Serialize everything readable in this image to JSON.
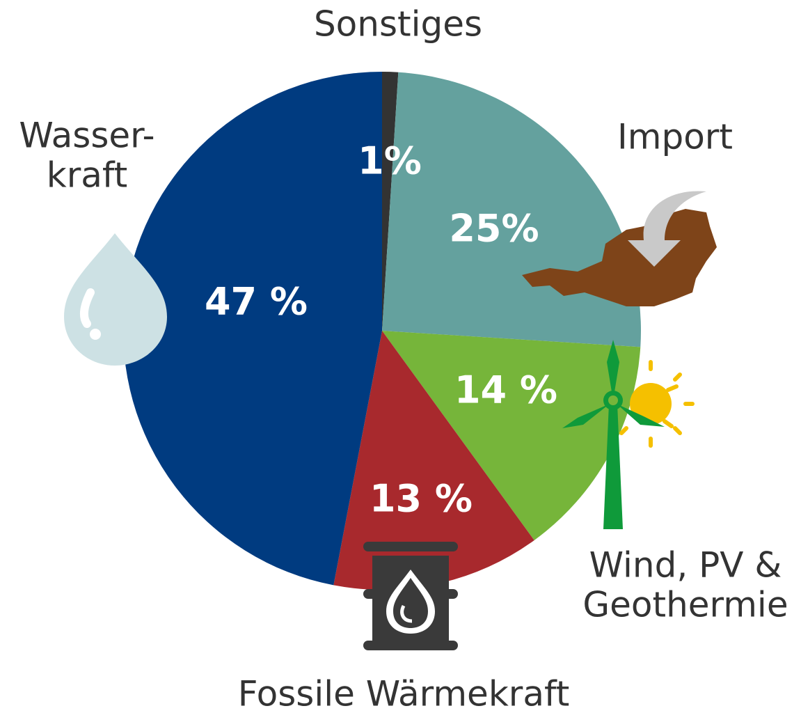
{
  "chart_data": {
    "type": "pie",
    "categories": [
      [
        "Sonstiges"
      ],
      [
        "Import"
      ],
      [
        "Wind, PV &",
        "Geothermie"
      ],
      [
        "Fossile Wärmekraft"
      ],
      [
        "Wasser-",
        "kraft"
      ]
    ],
    "values": [
      1,
      25,
      14,
      13,
      47
    ],
    "value_labels": [
      "1%",
      "25%",
      "14 %",
      "13 %",
      "47 %"
    ],
    "colors": [
      "#333333",
      "#64a19e",
      "#76b53a",
      "#a8292d",
      "#003b80"
    ]
  }
}
